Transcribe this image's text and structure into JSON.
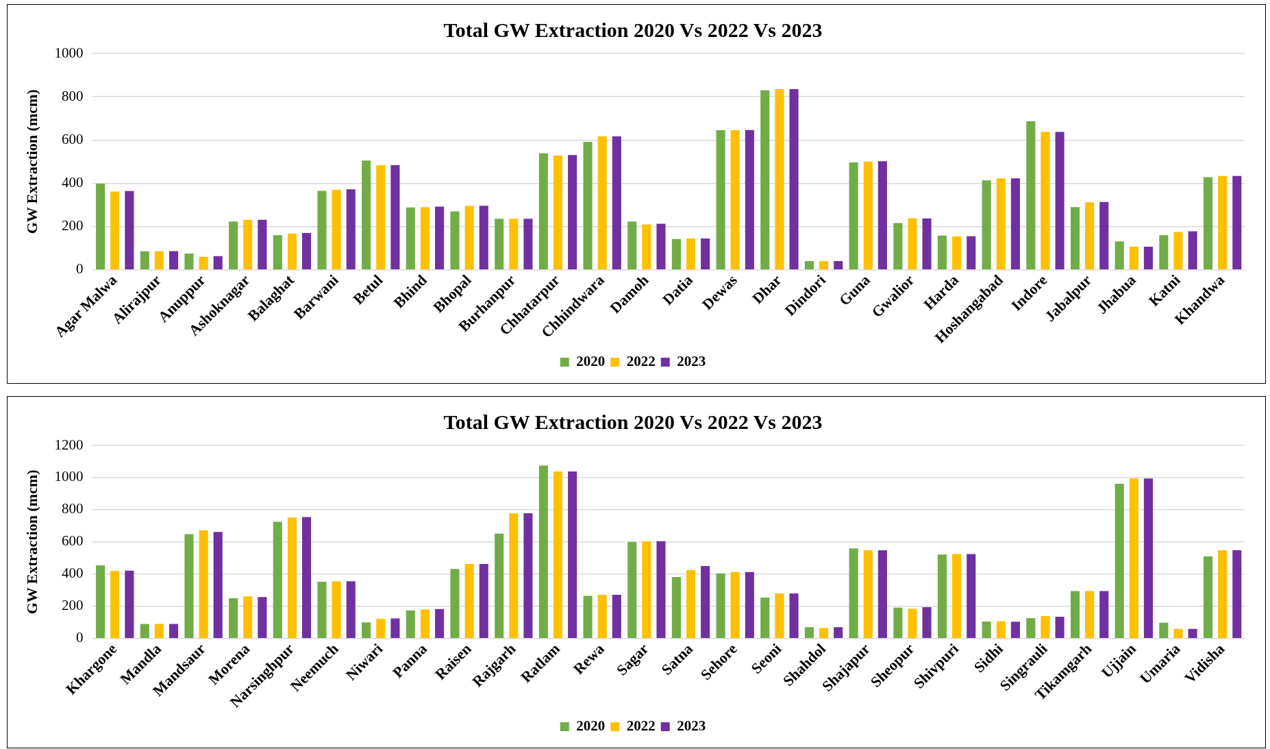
{
  "chart_data": [
    {
      "type": "bar",
      "title": "Total GW Extraction 2020 Vs 2022 Vs 2023",
      "ylabel": "GW Extraction (mcm)",
      "categories": [
        "Agar Malwa",
        "Alirajpur",
        "Anuppur",
        "Ashoknagar",
        "Balaghat",
        "Barwani",
        "Betul",
        "Bhind",
        "Bhopal",
        "Burhanpur",
        "Chhatarpur",
        "Chhindwara",
        "Damoh",
        "Datia",
        "Dewas",
        "Dhar",
        "Dindori",
        "Guna",
        "Gwalior",
        "Harda",
        "Hoshangabad",
        "Indore",
        "Jabalpur",
        "Jhabua",
        "Katni",
        "Khandwa"
      ],
      "series": [
        {
          "name": "2020",
          "color": "#70ad47",
          "values": [
            398,
            85,
            75,
            223,
            160,
            365,
            505,
            288,
            270,
            236,
            538,
            591,
            223,
            142,
            645,
            830,
            40,
            496,
            216,
            158,
            413,
            686,
            290,
            131,
            160,
            428
          ]
        },
        {
          "name": "2022",
          "color": "#ffc000",
          "values": [
            362,
            85,
            60,
            231,
            168,
            370,
            484,
            290,
            295,
            236,
            528,
            617,
            210,
            145,
            645,
            835,
            40,
            500,
            238,
            154,
            423,
            637,
            312,
            107,
            175,
            434
          ]
        },
        {
          "name": "2023",
          "color": "#7030a0",
          "values": [
            364,
            86,
            63,
            231,
            170,
            372,
            484,
            292,
            296,
            236,
            530,
            617,
            213,
            145,
            646,
            835,
            40,
            502,
            237,
            155,
            423,
            637,
            313,
            107,
            178,
            434
          ]
        }
      ],
      "ylim": [
        0,
        1000
      ],
      "yticks": [
        0,
        200,
        400,
        600,
        800,
        1000
      ],
      "grid": "y",
      "legend": "bottom"
    },
    {
      "type": "bar",
      "title": "Total GW Extraction 2020 Vs 2022 Vs 2023",
      "ylabel": "GW Extraction (mcm)",
      "categories": [
        "Khargone",
        "Mandla",
        "Mandsaur",
        "Morena",
        "Narsinghpur",
        "Neemuch",
        "Niwari",
        "Panna",
        "Raisen",
        "Rajgarh",
        "Ratlam",
        "Rewa",
        "Sagar",
        "Satna",
        "Sehore",
        "Seoni",
        "Shahdol",
        "Shajapur",
        "Sheopur",
        "Shivpuri",
        "Sidhi",
        "Singrauli",
        "Tikamgarh",
        "Ujjain",
        "Umaria",
        "Vidisha"
      ],
      "series": [
        {
          "name": "2020",
          "color": "#70ad47",
          "values": [
            455,
            90,
            648,
            250,
            725,
            352,
            100,
            175,
            432,
            652,
            1075,
            265,
            600,
            382,
            405,
            255,
            70,
            560,
            192,
            522,
            105,
            127,
            295,
            962,
            98,
            510
          ]
        },
        {
          "name": "2022",
          "color": "#ffc000",
          "values": [
            420,
            90,
            672,
            262,
            752,
            356,
            122,
            180,
            463,
            778,
            1038,
            272,
            605,
            425,
            413,
            280,
            65,
            548,
            185,
            525,
            108,
            140,
            295,
            995,
            60,
            548
          ]
        },
        {
          "name": "2023",
          "color": "#7030a0",
          "values": [
            422,
            90,
            662,
            258,
            755,
            356,
            125,
            183,
            463,
            778,
            1038,
            272,
            605,
            450,
            413,
            280,
            70,
            548,
            195,
            525,
            104,
            135,
            295,
            995,
            60,
            548
          ]
        }
      ],
      "ylim": [
        0,
        1200
      ],
      "yticks": [
        0,
        200,
        400,
        600,
        800,
        1000,
        1200
      ],
      "grid": "y",
      "legend": "bottom"
    }
  ]
}
